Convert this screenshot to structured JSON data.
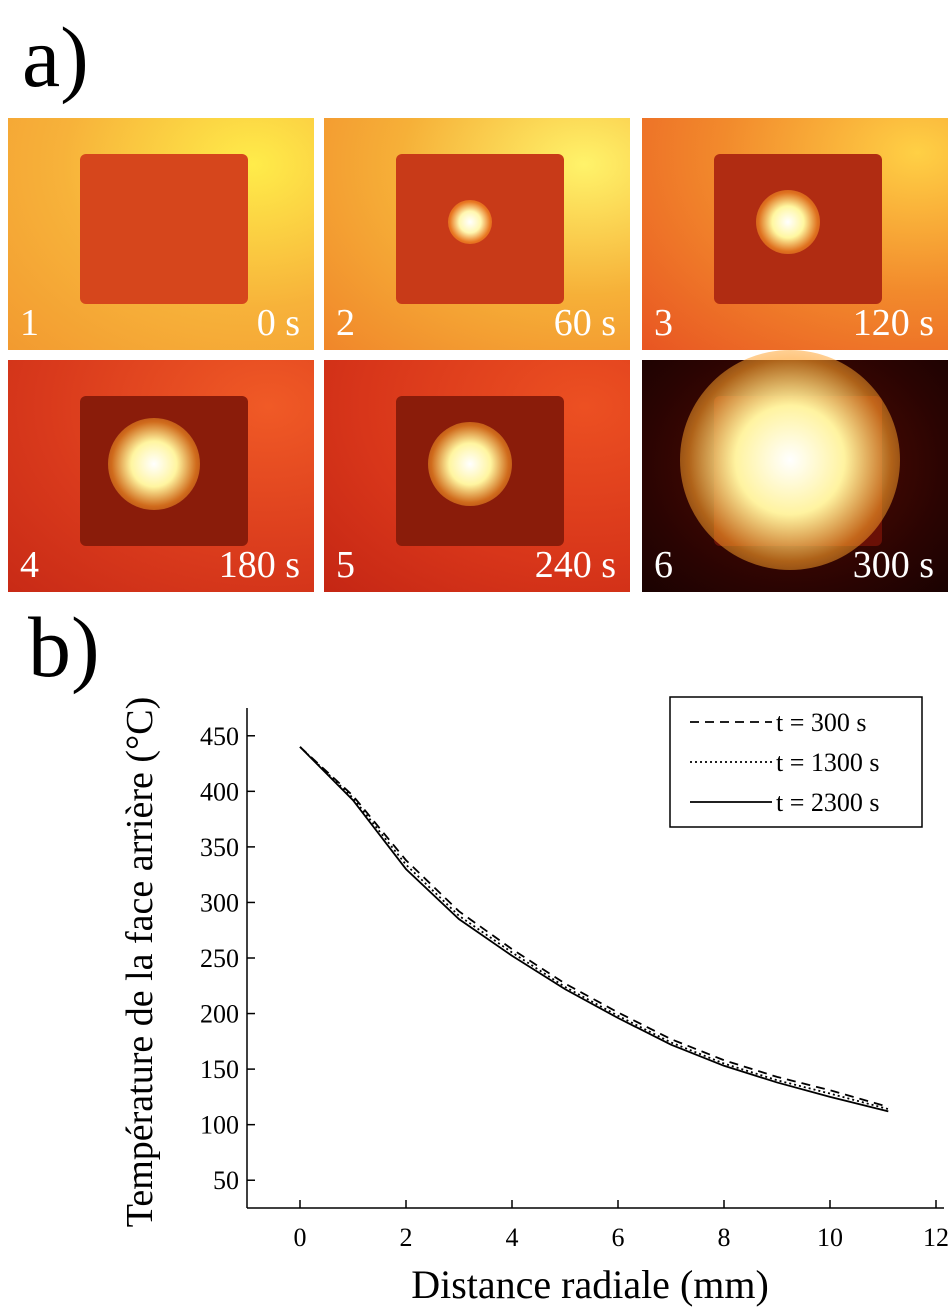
{
  "figure": {
    "label_a": "a)",
    "label_b": "b)",
    "thumbnails": [
      {
        "number": "1",
        "time": "0 s"
      },
      {
        "number": "2",
        "time": "60 s"
      },
      {
        "number": "3",
        "time": "120 s"
      },
      {
        "number": "4",
        "time": "180 s"
      },
      {
        "number": "5",
        "time": "240 s"
      },
      {
        "number": "6",
        "time": "300 s"
      }
    ]
  },
  "chart_data": {
    "type": "line",
    "x_label": "Distance radiale (mm)",
    "y_label": "Température de la face arrière (°C)",
    "x": [
      0,
      1,
      2,
      3,
      4,
      5,
      6,
      7,
      8,
      9,
      10,
      11.1
    ],
    "series": [
      {
        "name": "t = 300 s",
        "color": "#000000",
        "line_style": "dashed",
        "values": [
          440,
          396,
          338,
          292,
          258,
          227,
          201,
          177,
          158,
          143,
          131,
          116
        ]
      },
      {
        "name": "t = 1300 s",
        "color": "#000000",
        "line_style": "dotted",
        "values": [
          440,
          394,
          334,
          288,
          255,
          224,
          198,
          174,
          155,
          140,
          128,
          114
        ]
      },
      {
        "name": "t = 2300 s",
        "color": "#000000",
        "line_style": "solid",
        "values": [
          440,
          392,
          330,
          285,
          252,
          222,
          196,
          172,
          153,
          138,
          125,
          112
        ]
      }
    ],
    "xlim": [
      -1,
      12
    ],
    "ylim": [
      25,
      475
    ],
    "xticks": [
      0,
      2,
      4,
      6,
      8,
      10,
      12
    ],
    "yticks": [
      50,
      100,
      150,
      200,
      250,
      300,
      350,
      400,
      450
    ],
    "legend": "top-right",
    "grid": false
  }
}
